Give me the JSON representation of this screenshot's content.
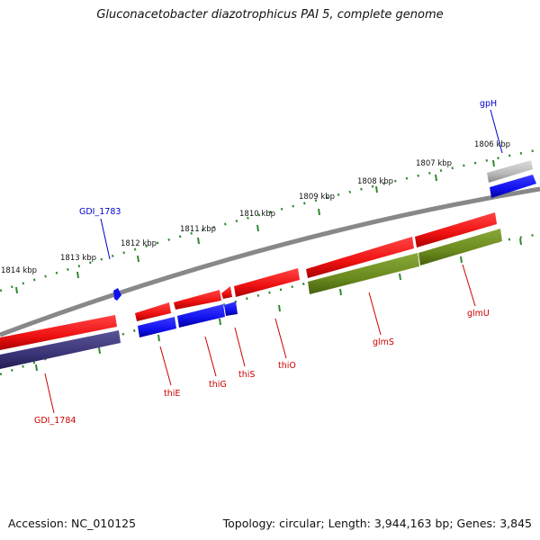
{
  "title": "Gluconacetobacter diazotrophicus PAI 5, complete genome",
  "footer": {
    "accession": "Accession: NC_010125",
    "summary": "Topology: circular; Length: 3,944,163 bp; Genes: 3,845"
  },
  "colors": {
    "backbone": "#888888",
    "red_feature": "#ee1111",
    "blue_feature": "#1111ee",
    "navy_feature": "#3b3578",
    "olive_feature": "#6b8a1e",
    "grey_feature": "#b8b8b8",
    "tick": "#2f8a2f",
    "label_red": "#cc0000",
    "label_blue": "#0000cc"
  },
  "ticks": [
    "1814 kbp",
    "1813 kbp",
    "1812 kbp",
    "1811 kbp",
    "1810 kbp",
    "1809 kbp",
    "1808 kbp",
    "1807 kbp",
    "1806 kbp"
  ],
  "genes": [
    {
      "label": "gpH",
      "color": "blue",
      "track": "outer-strand"
    },
    {
      "label": "GDI_1783",
      "color": "blue",
      "track": "outer-strand"
    },
    {
      "label": "GDI_1784",
      "color": "red",
      "track": "inner-strand"
    },
    {
      "label": "thiE",
      "color": "red",
      "track": "inner-strand"
    },
    {
      "label": "thiG",
      "color": "red",
      "track": "inner-strand"
    },
    {
      "label": "thiS",
      "color": "red",
      "track": "inner-strand"
    },
    {
      "label": "thiO",
      "color": "red",
      "track": "inner-strand"
    },
    {
      "label": "glmS",
      "color": "red",
      "track": "inner-strand"
    },
    {
      "label": "glmU",
      "color": "red",
      "track": "inner-strand"
    }
  ]
}
